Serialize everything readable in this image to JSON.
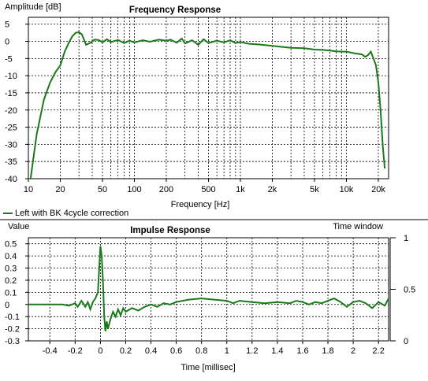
{
  "top_chart": {
    "title": "Frequency Response",
    "ylabel": "Amplitude [dB]",
    "xlabel": "Frequency [Hz]",
    "legend_label": "Left with BK 4cycle correction",
    "series_color": "#1a7a1a",
    "chart_data": {
      "type": "line",
      "title": "Frequency Response",
      "xlabel": "Frequency [Hz]",
      "ylabel": "Amplitude [dB]",
      "xscale": "log",
      "xlim": [
        10,
        25000
      ],
      "ylim": [
        -40,
        7
      ],
      "grid": true,
      "xticks": [
        {
          "v": 10,
          "label": "10"
        },
        {
          "v": 20,
          "label": "20"
        },
        {
          "v": 50,
          "label": "50"
        },
        {
          "v": 100,
          "label": "100"
        },
        {
          "v": 200,
          "label": "200"
        },
        {
          "v": 500,
          "label": "500"
        },
        {
          "v": 1000,
          "label": "1k"
        },
        {
          "v": 2000,
          "label": "2k"
        },
        {
          "v": 5000,
          "label": "5k"
        },
        {
          "v": 10000,
          "label": "10k"
        },
        {
          "v": 20000,
          "label": "20k"
        }
      ],
      "yticks": [
        5,
        0,
        -5,
        -10,
        -15,
        -20,
        -25,
        -30,
        -35,
        -40
      ],
      "series": [
        {
          "name": "Left with BK 4cycle correction",
          "x": [
            10.5,
            12,
            14,
            16,
            18,
            20,
            22,
            24,
            26,
            28,
            30,
            32,
            35,
            38,
            42,
            46,
            50,
            55,
            60,
            70,
            80,
            90,
            100,
            120,
            140,
            170,
            200,
            220,
            250,
            280,
            300,
            350,
            400,
            450,
            500,
            600,
            700,
            800,
            900,
            1000,
            1200,
            1500,
            2000,
            3000,
            4000,
            5000,
            6000,
            7000,
            8000,
            9000,
            10000,
            12000,
            14000,
            15000,
            16000,
            17000,
            18000,
            19000,
            20000,
            21000,
            22000,
            23000
          ],
          "y": [
            -40,
            -27,
            -17,
            -12,
            -9,
            -7,
            -3,
            -0.5,
            1.5,
            2.5,
            2.7,
            2,
            -1,
            -0.5,
            0.5,
            0.4,
            -0.3,
            0.6,
            -0.2,
            0.4,
            -0.5,
            0.2,
            -0.3,
            0.3,
            -0.1,
            0.5,
            0.2,
            0.5,
            -0.4,
            0.8,
            -0.6,
            0.3,
            -1,
            0.6,
            -0.5,
            0.2,
            -0.3,
            0.3,
            -0.5,
            -0.2,
            -0.7,
            -0.9,
            -1.3,
            -1.9,
            -2,
            -2.4,
            -2.5,
            -2.7,
            -2.9,
            -3,
            -3,
            -3.5,
            -3.8,
            -4.5,
            -4,
            -3,
            -5,
            -7,
            -12,
            -20,
            -30,
            -37
          ]
        }
      ]
    }
  },
  "bottom_chart": {
    "title": "Impulse Response",
    "ylabel": "Value",
    "xlabel": "Time [millisec]",
    "window_label": "Time window",
    "series_color": "#1a7a1a",
    "chart_data": {
      "type": "line",
      "title": "Impulse Response",
      "xlabel": "Time [millisec]",
      "ylabel": "Value",
      "xlim": [
        -0.57,
        2.28
      ],
      "ylim": [
        -0.3,
        0.55
      ],
      "grid": true,
      "xticks": [
        {
          "v": -0.4,
          "label": "-0.4"
        },
        {
          "v": -0.2,
          "label": "-0.2"
        },
        {
          "v": 0,
          "label": "0"
        },
        {
          "v": 0.2,
          "label": "0.2"
        },
        {
          "v": 0.4,
          "label": "0.4"
        },
        {
          "v": 0.6,
          "label": "0.6"
        },
        {
          "v": 0.8,
          "label": "0.8"
        },
        {
          "v": 1.0,
          "label": "1"
        },
        {
          "v": 1.2,
          "label": "1.2"
        },
        {
          "v": 1.4,
          "label": "1.4"
        },
        {
          "v": 1.6,
          "label": "1.6"
        },
        {
          "v": 1.8,
          "label": "1.8"
        },
        {
          "v": 2.0,
          "label": "2"
        },
        {
          "v": 2.2,
          "label": "2.2"
        }
      ],
      "yticks": [
        {
          "v": 0.5,
          "label": "0.5"
        },
        {
          "v": 0.4,
          "label": "0.4"
        },
        {
          "v": 0.3,
          "label": "0.3"
        },
        {
          "v": 0.2,
          "label": "0.2"
        },
        {
          "v": 0.1,
          "label": "0.1"
        },
        {
          "v": 0,
          "label": "0"
        },
        {
          "v": -0.1,
          "label": "-0.1"
        },
        {
          "v": -0.2,
          "label": "-0.2"
        },
        {
          "v": -0.3,
          "label": "-0.3"
        }
      ],
      "window_axis": {
        "ylim": [
          0,
          1
        ],
        "ticks": [
          {
            "v": 1,
            "label": "1"
          },
          {
            "v": 0.5,
            "label": "0.5"
          },
          {
            "v": 0,
            "label": "0"
          }
        ]
      },
      "series": [
        {
          "name": "Left with BK 4cycle correction",
          "x": [
            -0.57,
            -0.4,
            -0.3,
            -0.25,
            -0.2,
            -0.18,
            -0.15,
            -0.12,
            -0.1,
            -0.08,
            -0.06,
            -0.04,
            -0.02,
            0,
            0.01,
            0.02,
            0.03,
            0.04,
            0.05,
            0.06,
            0.08,
            0.1,
            0.12,
            0.14,
            0.16,
            0.18,
            0.2,
            0.25,
            0.3,
            0.35,
            0.4,
            0.45,
            0.5,
            0.55,
            0.6,
            0.65,
            0.7,
            0.8,
            0.9,
            1.0,
            1.05,
            1.1,
            1.2,
            1.3,
            1.4,
            1.5,
            1.55,
            1.6,
            1.65,
            1.7,
            1.75,
            1.8,
            1.85,
            1.9,
            1.95,
            2.0,
            2.05,
            2.1,
            2.15,
            2.2,
            2.25,
            2.28
          ],
          "y": [
            0,
            0,
            0,
            -0.01,
            0.01,
            -0.02,
            0.03,
            -0.02,
            0.02,
            -0.04,
            0.02,
            0.05,
            0.1,
            0.48,
            0.4,
            0.2,
            -0.1,
            -0.22,
            -0.14,
            -0.2,
            -0.12,
            -0.06,
            -0.1,
            -0.04,
            -0.09,
            -0.03,
            -0.06,
            -0.03,
            -0.05,
            -0.02,
            0,
            -0.02,
            0.01,
            0,
            0.02,
            0.03,
            0.04,
            0.05,
            0.04,
            0.03,
            0.01,
            0.03,
            0.02,
            0.01,
            0.02,
            0.01,
            0.03,
            0.02,
            0,
            0.02,
            0.01,
            0.03,
            0.05,
            0.02,
            -0.02,
            0.02,
            0.03,
            0.01,
            -0.03,
            0.02,
            -0.01,
            0.05
          ]
        }
      ]
    }
  }
}
